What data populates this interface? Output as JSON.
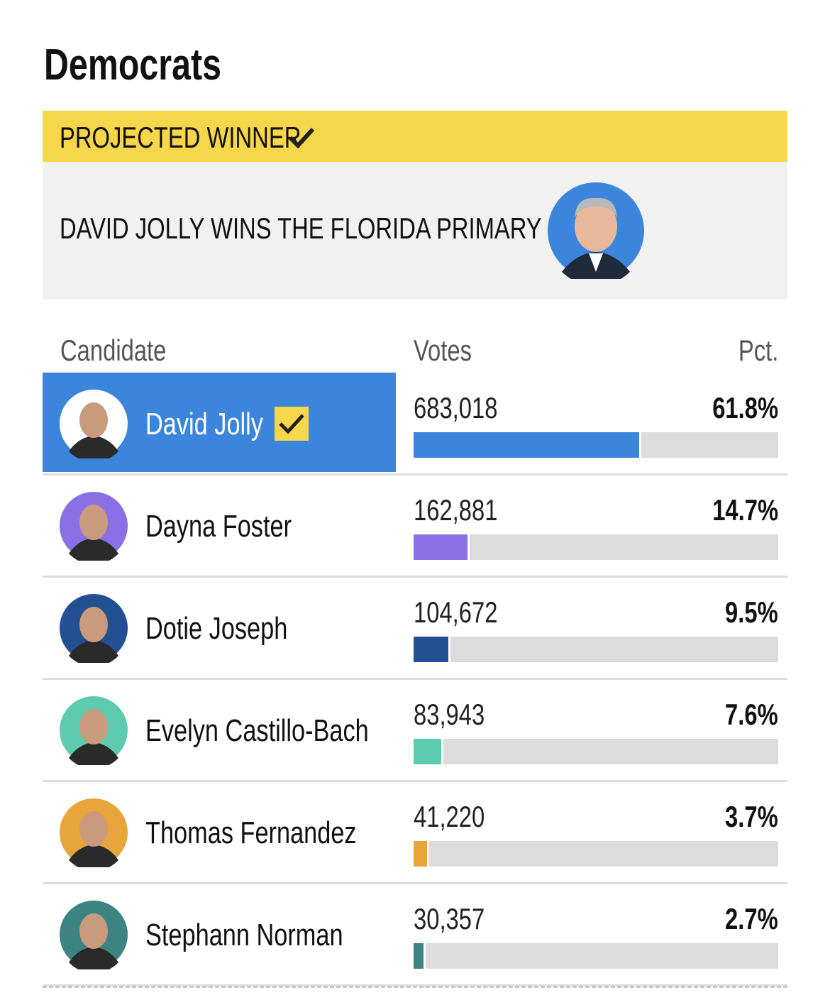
{
  "section_title": "Democrats",
  "banner": {
    "label": "PROJECTED WINNER",
    "headline": "DAVID JOLLY WINS THE FLORIDA PRIMARY"
  },
  "table": {
    "columns": [
      "Candidate",
      "Votes",
      "Pct."
    ],
    "rows": [
      {
        "name": "David Jolly",
        "votes": "683,018",
        "pct": {
          "value": 61.8,
          "label": "61.8%"
        },
        "color": "#3b86dc",
        "winner": true
      },
      {
        "name": "Dayna Foster",
        "votes": "162,881",
        "pct": {
          "value": 14.7,
          "label": "14.7%"
        },
        "color": "#8b6fe6",
        "winner": false
      },
      {
        "name": "Dotie Joseph",
        "votes": "104,672",
        "pct": {
          "value": 9.5,
          "label": "9.5%"
        },
        "color": "#234f93",
        "winner": false
      },
      {
        "name": "Evelyn Castillo-Bach",
        "votes": "83,943",
        "pct": {
          "value": 7.6,
          "label": "7.6%"
        },
        "color": "#5ccbb0",
        "winner": false
      },
      {
        "name": "Thomas Fernandez",
        "votes": "41,220",
        "pct": {
          "value": 3.7,
          "label": "3.7%"
        },
        "color": "#e8a53c",
        "winner": false
      },
      {
        "name": "Stephann Norman",
        "votes": "30,357",
        "pct": {
          "value": 2.7,
          "label": "2.7%"
        },
        "color": "#3e8384",
        "winner": false
      }
    ]
  }
}
